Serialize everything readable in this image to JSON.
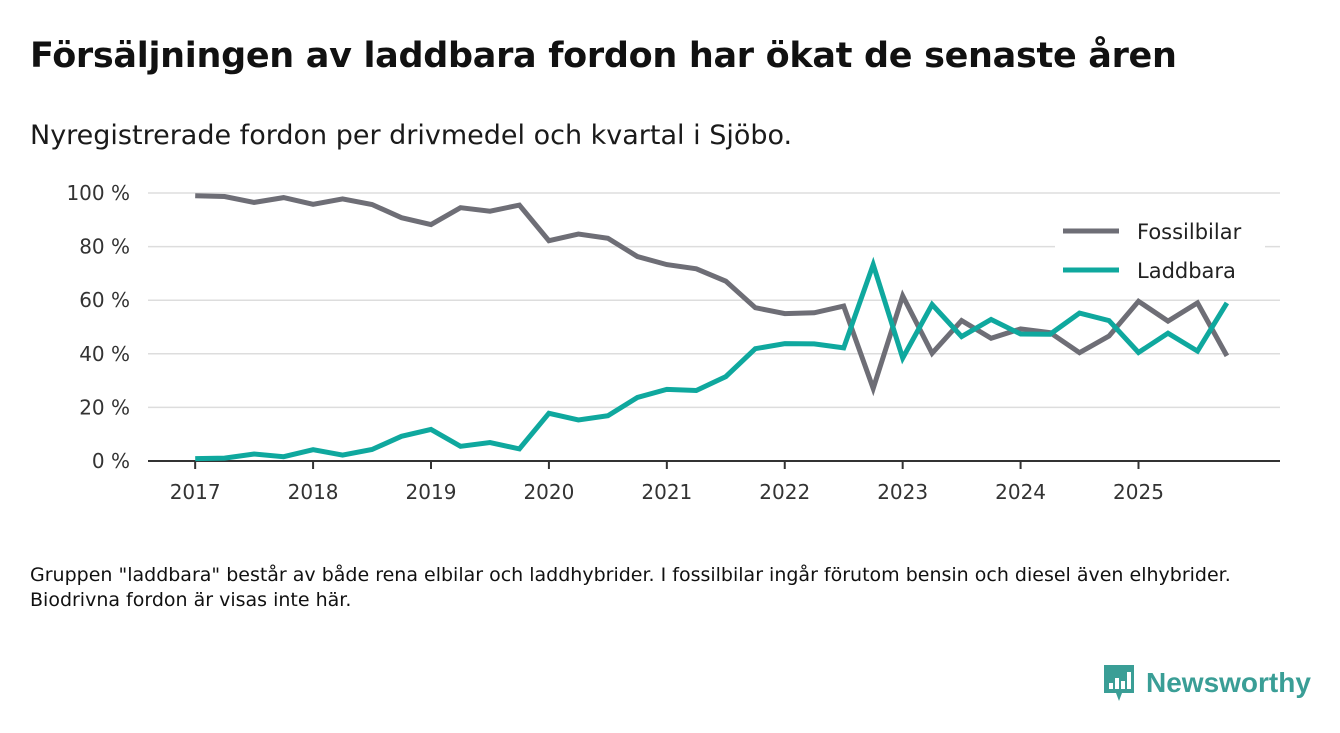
{
  "title": "Försäljningen av laddbara fordon har ökat de senaste åren",
  "subtitle": "Nyregistrerade fordon per drivmedel och kvartal i Sjöbo.",
  "note": "Gruppen \"laddbara\" består av både rena elbilar och laddhybrider. I fossilbilar ingår förutom bensin och diesel även elhybrider. Biodrivna fordon är visas inte här.",
  "brand": {
    "name": "Newsworthy",
    "icon": "bar-chart-icon",
    "color": "#3a9e96"
  },
  "chart_data": {
    "type": "line",
    "title": "Försäljningen av laddbara fordon har ökat de senaste åren",
    "subtitle": "Nyregistrerade fordon per drivmedel och kvartal i Sjöbo.",
    "xlabel": "",
    "ylabel": "",
    "x_start": 2017.0,
    "x_step": 0.25,
    "xlim": [
      2016.6,
      2026.2
    ],
    "ylim": [
      0,
      100
    ],
    "x_ticks": [
      2017,
      2018,
      2019,
      2020,
      2021,
      2022,
      2023,
      2024,
      2025
    ],
    "y_ticks": [
      0,
      20,
      40,
      60,
      80,
      100
    ],
    "y_tick_labels": [
      "0 %",
      "20 %",
      "40 %",
      "60 %",
      "80 %",
      "100 %"
    ],
    "grid": true,
    "legend_position": "top-right",
    "series": [
      {
        "name": "Fossilbilar",
        "color": "#6e6e76",
        "values": [
          99,
          98.7,
          96.5,
          98.3,
          95.8,
          97.8,
          95.7,
          90.8,
          88.2,
          94.5,
          93.2,
          95.5,
          82.2,
          84.7,
          83.1,
          76.3,
          73.3,
          71.7,
          67.1,
          57.2,
          55,
          55.3,
          57.8,
          27.1,
          61.6,
          40.2,
          52.4,
          45.8,
          49.3,
          47.9,
          40.4,
          46.6,
          59.6,
          52.2,
          59,
          39.2
        ]
      },
      {
        "name": "Laddbara",
        "color": "#0fa89e",
        "values": [
          0.9,
          1.1,
          2.6,
          1.6,
          4.2,
          2.2,
          4.3,
          9.2,
          11.8,
          5.5,
          6.9,
          4.5,
          17.8,
          15.3,
          16.9,
          23.7,
          26.7,
          26.3,
          31.5,
          41.9,
          43.8,
          43.7,
          42.2,
          73.3,
          38.4,
          58.4,
          46.4,
          52.8,
          47.4,
          47.3,
          55.2,
          52.4,
          40.5,
          47.7,
          41,
          59
        ]
      }
    ]
  }
}
